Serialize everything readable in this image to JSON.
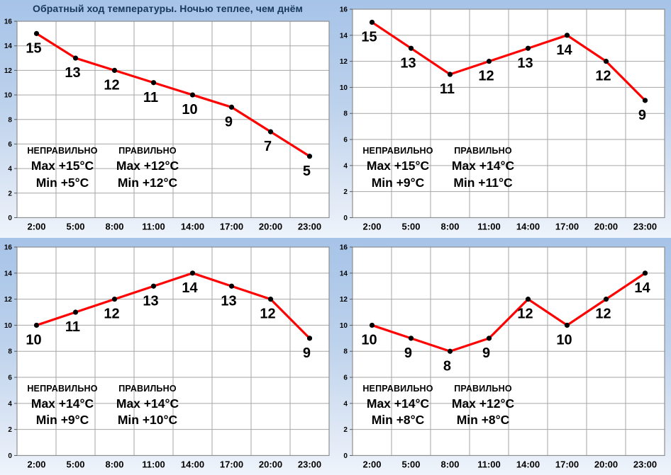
{
  "style": {
    "background_top": "#a6c3e8",
    "background_bottom": "#eff4fb",
    "plot_fill": "#ffffff",
    "grid_color": "#a6a6a6",
    "border_color": "#8f8f8f",
    "axis_tick_color": "#595959",
    "line_color": "#ff0000",
    "marker_color": "#000000",
    "label_color": "#000000",
    "title_color": "#17375d"
  },
  "chart_data": [
    {
      "type": "line",
      "title": "Обратный ход температуры. Ночью теплее, чем днём",
      "categories": [
        "2:00",
        "5:00",
        "8:00",
        "11:00",
        "14:00",
        "17:00",
        "20:00",
        "23:00"
      ],
      "values": [
        15,
        13,
        12,
        11,
        10,
        9,
        7,
        5
      ],
      "ylim": [
        0,
        16
      ],
      "ytick_step": 2,
      "grid": true,
      "xlabel": "",
      "ylabel": "",
      "legend": false,
      "annotations": [
        {
          "heading": "НЕПРАВИЛЬНО",
          "lines": [
            "Max +15°C",
            "Min +5°C"
          ]
        },
        {
          "heading": "ПРАВИЛЬНО",
          "lines": [
            "Max +12°C",
            "Min +12°C"
          ]
        }
      ]
    },
    {
      "type": "line",
      "title": "",
      "categories": [
        "2:00",
        "5:00",
        "8:00",
        "11:00",
        "14:00",
        "17:00",
        "20:00",
        "23:00"
      ],
      "values": [
        15,
        13,
        11,
        12,
        13,
        14,
        12,
        9
      ],
      "ylim": [
        0,
        16
      ],
      "ytick_step": 2,
      "grid": true,
      "xlabel": "",
      "ylabel": "",
      "legend": false,
      "annotations": [
        {
          "heading": "НЕПРАВИЛЬНО",
          "lines": [
            "Max +15°C",
            "Min +9°C"
          ]
        },
        {
          "heading": "ПРАВИЛЬНО",
          "lines": [
            "Max +14°C",
            "Min +11°C"
          ]
        }
      ]
    },
    {
      "type": "line",
      "title": "",
      "categories": [
        "2:00",
        "5:00",
        "8:00",
        "11:00",
        "14:00",
        "17:00",
        "20:00",
        "23:00"
      ],
      "values": [
        10,
        11,
        12,
        13,
        14,
        13,
        12,
        9
      ],
      "ylim": [
        0,
        16
      ],
      "ytick_step": 2,
      "grid": true,
      "xlabel": "",
      "ylabel": "",
      "legend": false,
      "annotations": [
        {
          "heading": "НЕПРАВИЛЬНО",
          "lines": [
            "Max +14°C",
            "Min +9°C"
          ]
        },
        {
          "heading": "ПРАВИЛЬНО",
          "lines": [
            "Max +14°C",
            "Min +10°C"
          ]
        }
      ]
    },
    {
      "type": "line",
      "title": "",
      "categories": [
        "2:00",
        "5:00",
        "8:00",
        "11:00",
        "14:00",
        "17:00",
        "20:00",
        "23:00"
      ],
      "values": [
        10,
        9,
        8,
        9,
        12,
        10,
        12,
        14
      ],
      "ylim": [
        0,
        16
      ],
      "ytick_step": 2,
      "grid": true,
      "xlabel": "",
      "ylabel": "",
      "legend": false,
      "annotations": [
        {
          "heading": "НЕПРАВИЛЬНО",
          "lines": [
            "Max +14°C",
            "Min +8°C"
          ]
        },
        {
          "heading": "ПРАВИЛЬНО",
          "lines": [
            "Max +12°C",
            "Min +8°C"
          ]
        }
      ]
    }
  ]
}
